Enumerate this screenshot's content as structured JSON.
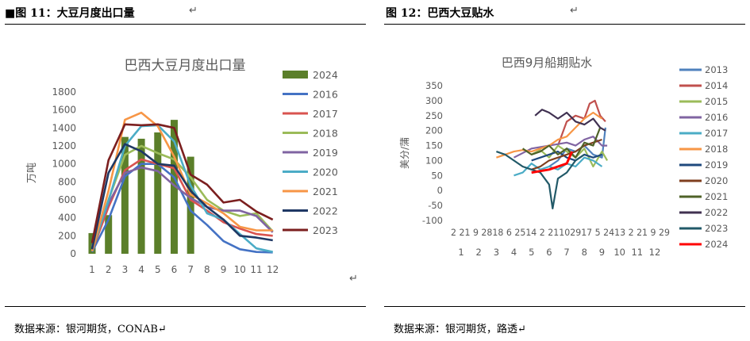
{
  "left": {
    "figure_label": "■图 11：大豆月度出口量",
    "return_mark": "↵",
    "source": "数据来源：银河期货，CONAB↵",
    "after_mark": "↵"
  },
  "right": {
    "figure_label": "图 12：巴西大豆贴水",
    "return_mark": "↵",
    "source": "数据来源：银河期货，路透↵"
  },
  "chart_data": [
    {
      "type": "bar+line",
      "title": "巴西大豆月度出口量",
      "ylabel": "万吨",
      "xlabel": "",
      "ylim": [
        0,
        1800
      ],
      "yticks": [
        "0",
        "200",
        "400",
        "600",
        "800",
        "1000",
        "1200",
        "1400",
        "1600",
        "1800"
      ],
      "categories": [
        "1",
        "2",
        "3",
        "4",
        "5",
        "6",
        "7",
        "8",
        "9",
        "10",
        "11",
        "12"
      ],
      "bar_series": {
        "name": "2024",
        "color": "#5B7F2A",
        "values": [
          230,
          430,
          1300,
          1280,
          1350,
          1490,
          1080,
          null,
          null,
          null,
          null,
          null
        ]
      },
      "series": [
        {
          "name": "2016",
          "color": "#4472C4",
          "values": [
            20,
            380,
            860,
            1000,
            1000,
            850,
            480,
            320,
            140,
            50,
            20,
            15
          ]
        },
        {
          "name": "2017",
          "color": "#D9534F",
          "values": [
            30,
            520,
            930,
            1050,
            1000,
            950,
            600,
            480,
            350,
            280,
            220,
            200
          ]
        },
        {
          "name": "2018",
          "color": "#9BBB59",
          "values": [
            30,
            600,
            1100,
            1200,
            1120,
            1050,
            850,
            600,
            480,
            420,
            450,
            250
          ]
        },
        {
          "name": "2019",
          "color": "#8064A2",
          "values": [
            80,
            560,
            900,
            960,
            920,
            760,
            620,
            520,
            480,
            480,
            420,
            240
          ]
        },
        {
          "name": "2020",
          "color": "#4BACC6",
          "values": [
            50,
            590,
            1200,
            1420,
            1430,
            1250,
            760,
            450,
            380,
            220,
            60,
            20
          ]
        },
        {
          "name": "2021",
          "color": "#F79646",
          "values": [
            30,
            700,
            1490,
            1570,
            1420,
            1080,
            660,
            560,
            450,
            300,
            260,
            260
          ]
        },
        {
          "name": "2022",
          "color": "#1F3864",
          "values": [
            50,
            900,
            1220,
            1140,
            1000,
            980,
            700,
            520,
            380,
            200,
            180,
            150
          ]
        },
        {
          "name": "2023",
          "color": "#7B1F1F",
          "values": [
            120,
            1040,
            1440,
            1430,
            1440,
            1400,
            880,
            770,
            570,
            600,
            470,
            380
          ]
        }
      ],
      "legend": [
        "2024",
        "2016",
        "2017",
        "2018",
        "2019",
        "2020",
        "2021",
        "2022",
        "2023"
      ],
      "legend_position": "right"
    },
    {
      "type": "line",
      "title": "巴西9月船期贴水",
      "ylabel": "美分/蒲",
      "ylim": [
        -100,
        350
      ],
      "yticks": [
        "-100",
        "-50",
        "0",
        "50",
        "100",
        "150",
        "200",
        "250",
        "300",
        "350"
      ],
      "xtick_row1": "2 21 9 2818 6 2514 2 21102917 5 2413 2 21 9 29",
      "xtick_row2": [
        "1",
        "2",
        "3",
        "4",
        "5",
        "6",
        "7",
        "8",
        "9",
        "10",
        "11",
        "12"
      ],
      "x_range": [
        1,
        12
      ],
      "series": [
        {
          "name": "2013",
          "color": "#4F81BD",
          "x": [
            6,
            6.5,
            7,
            7.5,
            8,
            8.5,
            9,
            9.2
          ],
          "y": [
            80,
            100,
            140,
            130,
            150,
            120,
            110,
            210
          ]
        },
        {
          "name": "2014",
          "color": "#C0504D",
          "x": [
            6.5,
            7,
            7.5,
            8,
            8.3,
            8.6,
            8.9,
            9.2
          ],
          "y": [
            150,
            230,
            250,
            240,
            290,
            300,
            250,
            230
          ]
        },
        {
          "name": "2015",
          "color": "#9BBB59",
          "x": [
            5,
            5.5,
            6,
            6.5,
            7,
            7.5,
            8,
            8.5,
            9,
            9.3
          ],
          "y": [
            120,
            135,
            110,
            150,
            130,
            110,
            140,
            80,
            130,
            100
          ]
        },
        {
          "name": "2016",
          "color": "#8064A2",
          "x": [
            4,
            5,
            6,
            7,
            7.5,
            8,
            8.5,
            9,
            9.3
          ],
          "y": [
            110,
            140,
            150,
            160,
            150,
            170,
            180,
            150,
            150
          ]
        },
        {
          "name": "2017",
          "color": "#4BACC6",
          "x": [
            4,
            4.5,
            5,
            5.5,
            6,
            6.5,
            7,
            7.5,
            8,
            8.5,
            9
          ],
          "y": [
            50,
            60,
            90,
            70,
            80,
            70,
            90,
            80,
            110,
            100,
            80
          ]
        },
        {
          "name": "2018",
          "color": "#F79646",
          "x": [
            3,
            3.5,
            4,
            4.5,
            5,
            5.5,
            6,
            6.5,
            7,
            7.5,
            8,
            8.5,
            9
          ],
          "y": [
            110,
            120,
            130,
            135,
            130,
            140,
            150,
            170,
            180,
            210,
            240,
            260,
            240
          ]
        },
        {
          "name": "2019",
          "color": "#1F497D",
          "x": [
            5,
            5.5,
            6,
            6.5,
            7,
            7.5,
            8,
            8.5,
            9
          ],
          "y": [
            100,
            110,
            120,
            130,
            110,
            100,
            120,
            110,
            120
          ]
        },
        {
          "name": "2020",
          "color": "#7F3F1F",
          "x": [
            5,
            5.5,
            6,
            6.5,
            7,
            7.5,
            8,
            8.5,
            9
          ],
          "y": [
            70,
            80,
            100,
            110,
            120,
            130,
            150,
            160,
            170
          ]
        },
        {
          "name": "2021",
          "color": "#4F6228",
          "x": [
            4.5,
            5,
            5.5,
            6,
            6.5,
            7,
            7.5,
            8,
            8.5,
            8.9
          ],
          "y": [
            140,
            120,
            130,
            150,
            120,
            140,
            110,
            160,
            150,
            210
          ]
        },
        {
          "name": "2022",
          "color": "#403151",
          "x": [
            5.2,
            5.6,
            6,
            6.5,
            7,
            7.5,
            8,
            8.5,
            8.9,
            9.2
          ],
          "y": [
            250,
            270,
            260,
            240,
            260,
            230,
            220,
            240,
            210,
            200
          ]
        },
        {
          "name": "2023",
          "color": "#215968",
          "x": [
            3,
            3.5,
            4,
            4.5,
            5,
            5.5,
            6,
            6.2,
            6.5,
            7,
            7.5,
            8
          ],
          "y": [
            130,
            120,
            100,
            80,
            70,
            60,
            20,
            -60,
            40,
            60,
            100,
            120
          ]
        },
        {
          "name": "2024",
          "color": "#FF0000",
          "x": [
            5,
            5.5,
            6,
            6.5,
            7,
            7.3
          ],
          "y": [
            60,
            65,
            70,
            80,
            90,
            130
          ]
        }
      ],
      "legend": [
        "2013",
        "2014",
        "2015",
        "2016",
        "2017",
        "2018",
        "2019",
        "2020",
        "2021",
        "2022",
        "2023",
        "2024"
      ],
      "legend_position": "right"
    }
  ]
}
